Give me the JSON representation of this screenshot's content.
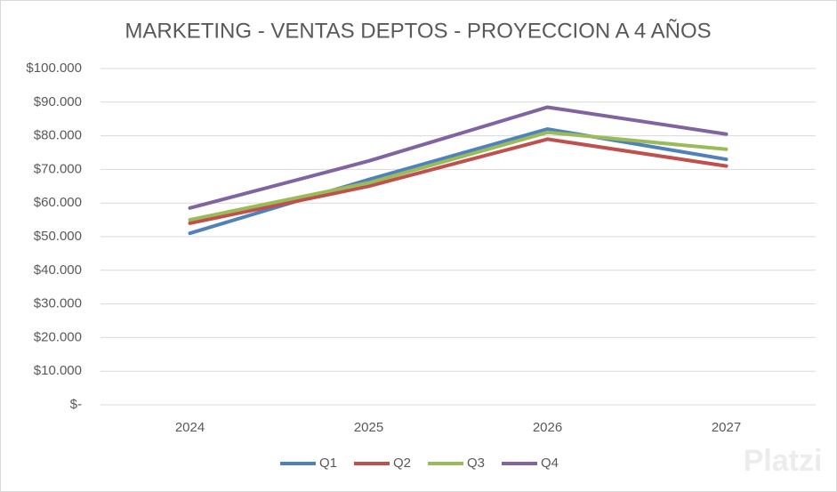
{
  "chart_data": {
    "type": "line",
    "title": "MARKETING - VENTAS DEPTOS - PROYECCION A 4 AÑOS",
    "categories": [
      "2024",
      "2025",
      "2026",
      "2027"
    ],
    "series": [
      {
        "name": "Q1",
        "color": "#4f81bd",
        "values": [
          51000,
          67000,
          82000,
          73000
        ]
      },
      {
        "name": "Q2",
        "color": "#c0504d",
        "values": [
          54000,
          65000,
          79000,
          71000
        ]
      },
      {
        "name": "Q3",
        "color": "#9bbb59",
        "values": [
          55000,
          66000,
          81000,
          76000
        ]
      },
      {
        "name": "Q4",
        "color": "#8064a2",
        "values": [
          58500,
          72500,
          88500,
          80500
        ]
      }
    ],
    "ylim": [
      0,
      100000
    ],
    "yticks": [
      {
        "value": 0,
        "label": "$-"
      },
      {
        "value": 10000,
        "label": "$10.000"
      },
      {
        "value": 20000,
        "label": "$20.000"
      },
      {
        "value": 30000,
        "label": "$30.000"
      },
      {
        "value": 40000,
        "label": "$40.000"
      },
      {
        "value": 50000,
        "label": "$50.000"
      },
      {
        "value": 60000,
        "label": "$60.000"
      },
      {
        "value": 70000,
        "label": "$70.000"
      },
      {
        "value": 80000,
        "label": "$80.000"
      },
      {
        "value": 90000,
        "label": "$90.000"
      },
      {
        "value": 100000,
        "label": "$100.000"
      }
    ],
    "grid": true,
    "legend": "bottom"
  },
  "watermark": "Platzi"
}
